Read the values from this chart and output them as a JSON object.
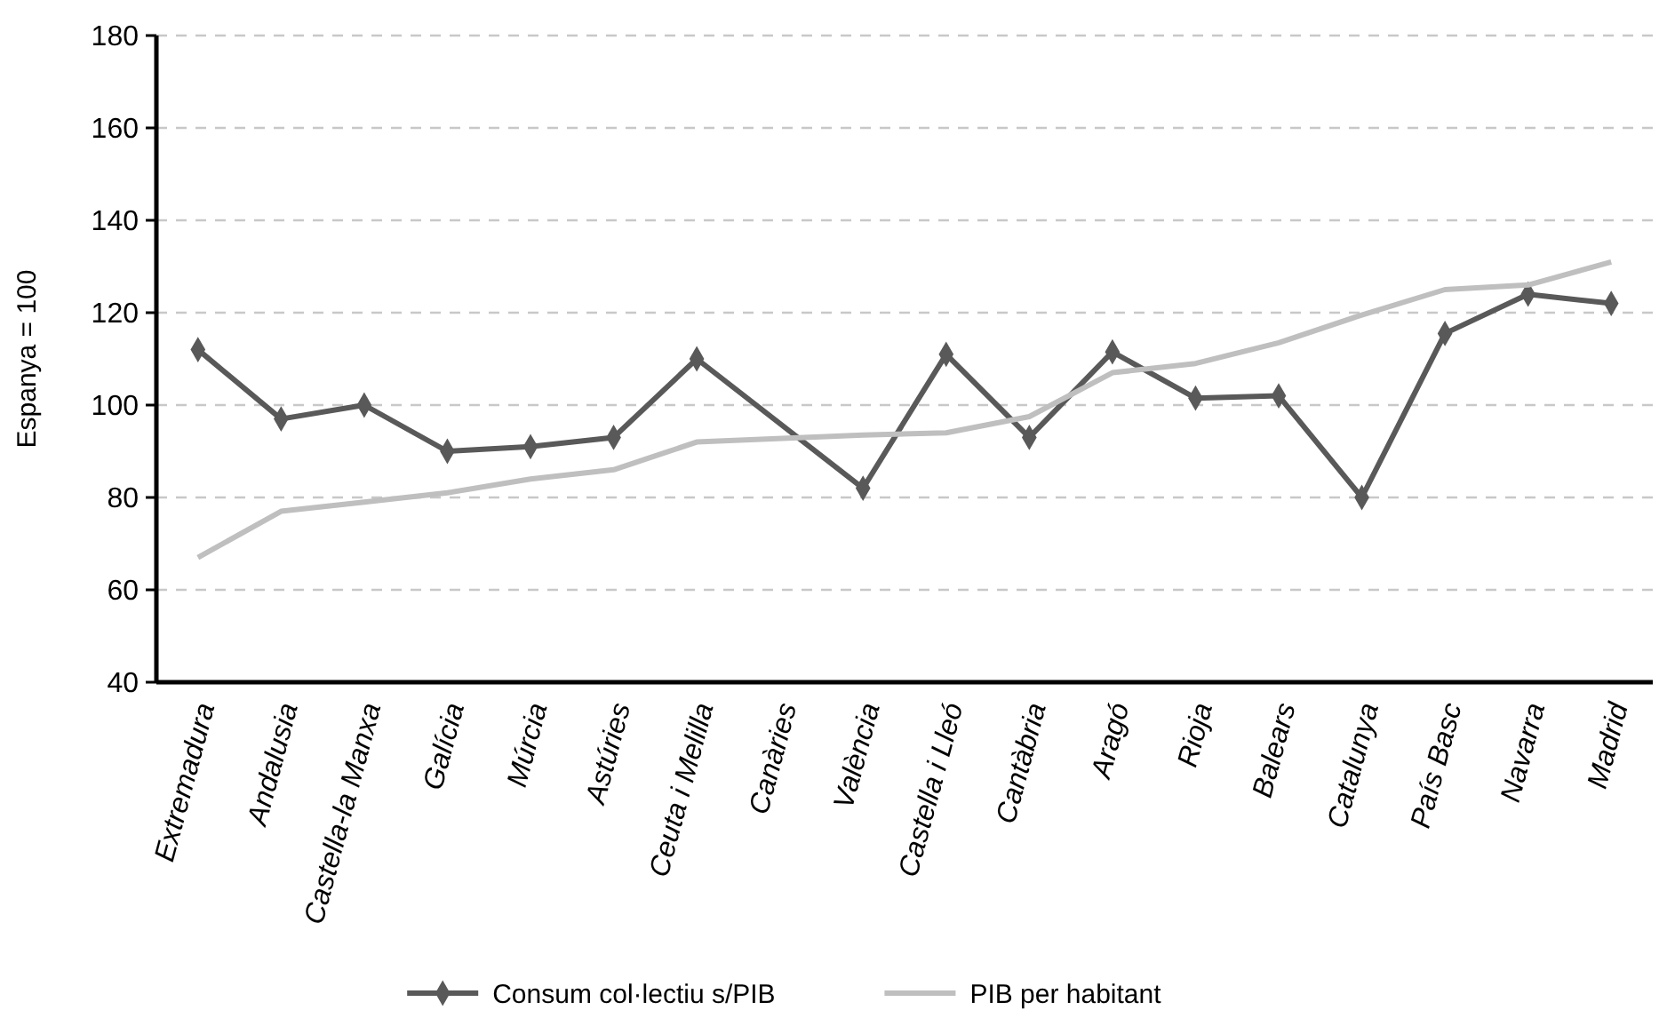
{
  "chart_data": {
    "type": "line",
    "ylabel": "Espanya = 100",
    "categories": [
      "Extremadura",
      "Andalusia",
      "Castella-la Manxa",
      "Galícia",
      "Múrcia",
      "Astúries",
      "Ceuta i Melilla",
      "Canàries",
      "València",
      "Castella i Lleó",
      "Cantàbria",
      "Aragó",
      "Rioja",
      "Balears",
      "Catalunya",
      "País Basc",
      "Navarra",
      "Madrid"
    ],
    "series": [
      {
        "name": "Consum col·lectiu s/PIB",
        "color": "#595959",
        "marker": "diamond",
        "values": [
          112,
          97,
          100,
          90,
          91,
          93,
          110,
          null,
          82,
          111,
          93,
          111.5,
          101.5,
          102,
          80,
          115.5,
          124,
          122
        ]
      },
      {
        "name": "PIB per habitant",
        "color": "#bfbfbf",
        "marker": "none",
        "values": [
          67,
          77,
          79,
          81,
          84,
          86,
          92,
          null,
          93.5,
          94,
          97.5,
          107,
          109,
          113.5,
          119.5,
          125,
          126,
          131
        ]
      }
    ],
    "ylim": [
      40,
      180
    ],
    "yticks": [
      40,
      60,
      80,
      100,
      120,
      140,
      160,
      180
    ],
    "grid": "y",
    "legend": "bottom"
  }
}
